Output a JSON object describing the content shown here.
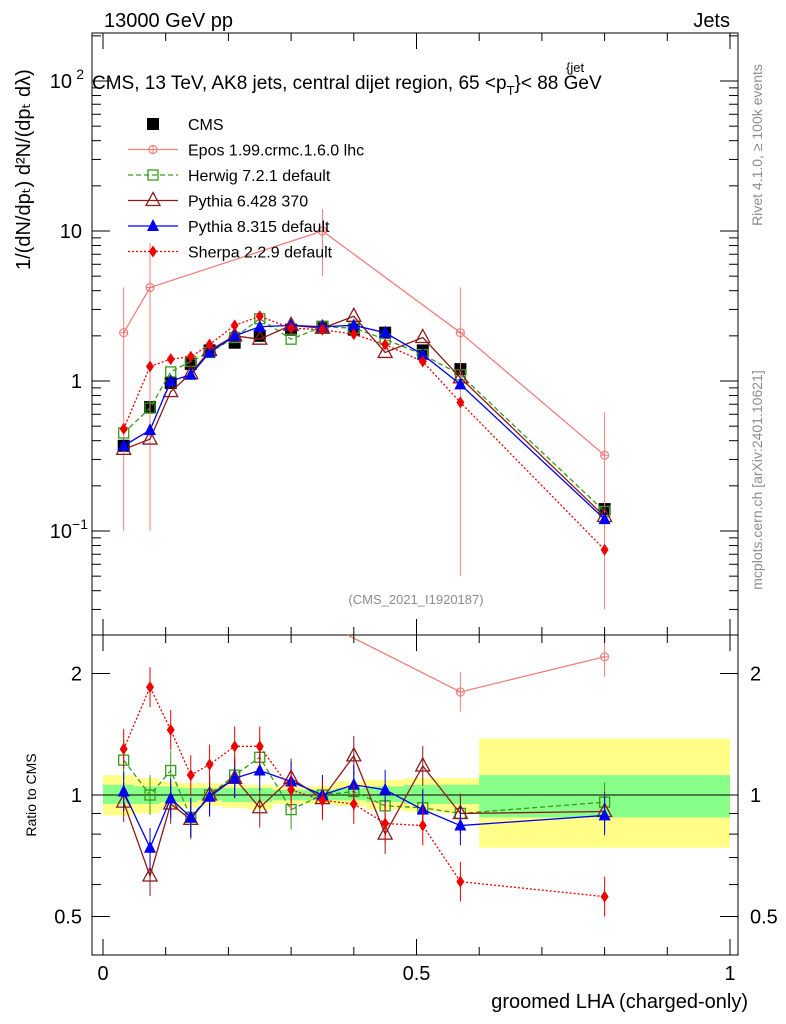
{
  "header": {
    "left": "13000 GeV pp",
    "right": "Jets"
  },
  "side_labels": {
    "rivet": "Rivet 4.1.0, ≥ 100k events",
    "mcplots": "mcplots.cern.ch [arXiv:2401.10621]"
  },
  "chart_data": [
    {
      "type": "line",
      "panel": "main",
      "title": "CMS, 13 TeV, AK8 jets, central dijet region, 65 < p_T^{jet} < 88 GeV",
      "watermark": "(CMS_2021_I1920187)",
      "ylabel": "1/(dN/dp_T) d²N/(dp_T dλ)",
      "xlabel": "groomed LHA (charged-only)",
      "yscale": "log",
      "ylim": [
        0.025,
        250
      ],
      "xlim": [
        -0.02,
        1.0
      ],
      "yticks": [
        "10^-1",
        "1",
        "10",
        "10^2"
      ],
      "legend_position": "top-left",
      "x": [
        0.033,
        0.075,
        0.108,
        0.14,
        0.17,
        0.21,
        0.25,
        0.3,
        0.35,
        0.4,
        0.45,
        0.51,
        0.57,
        0.8
      ],
      "series": [
        {
          "name": "CMS",
          "color": "#000000",
          "marker": "square",
          "line": "none",
          "values": [
            0.37,
            0.67,
            0.97,
            1.3,
            1.6,
            1.8,
            2.0,
            2.2,
            2.3,
            2.2,
            2.1,
            1.6,
            1.2,
            0.14
          ]
        },
        {
          "name": "Epos 1.99.crmc.1.6.0 lhc",
          "color": "#f08080",
          "marker": "cross-circle",
          "line": "solid",
          "values": [
            2.1,
            4.2,
            null,
            null,
            null,
            null,
            null,
            null,
            10.0,
            null,
            null,
            null,
            2.1,
            0.32
          ],
          "err_lo": [
            2.0,
            4.1,
            null,
            null,
            null,
            null,
            null,
            null,
            5.0,
            null,
            null,
            null,
            2.05,
            0.29
          ],
          "err_hi": [
            4.2,
            8.3,
            null,
            null,
            null,
            null,
            null,
            null,
            14.0,
            null,
            null,
            null,
            4.2,
            0.62
          ]
        },
        {
          "name": "Herwig 7.2.1 default",
          "color": "#3a9a1a",
          "marker": "open-square",
          "line": "dashed",
          "values": [
            0.45,
            0.66,
            1.15,
            1.35,
            1.55,
            1.95,
            2.6,
            1.9,
            2.3,
            2.25,
            1.9,
            1.5,
            1.1,
            0.135
          ]
        },
        {
          "name": "Pythia 6.428 370",
          "color": "#8b1a1a",
          "marker": "open-triangle",
          "line": "solid",
          "values": [
            0.35,
            0.41,
            0.85,
            1.12,
            1.6,
            2.0,
            1.9,
            2.35,
            2.25,
            2.7,
            1.55,
            1.95,
            1.05,
            0.125
          ]
        },
        {
          "name": "Pythia 8.315 default",
          "color": "#0000ee",
          "marker": "triangle",
          "line": "solid",
          "values": [
            0.37,
            0.47,
            1.0,
            1.1,
            1.55,
            2.0,
            2.3,
            2.35,
            2.3,
            2.35,
            2.1,
            1.5,
            0.95,
            0.12
          ]
        },
        {
          "name": "Sherpa 2.2.9 default",
          "color": "#ee0000",
          "marker": "diamond",
          "line": "dotted",
          "values": [
            0.48,
            1.25,
            1.4,
            1.45,
            1.75,
            2.35,
            2.7,
            2.25,
            2.2,
            2.05,
            1.75,
            1.35,
            0.72,
            0.075
          ]
        }
      ]
    },
    {
      "type": "line",
      "panel": "ratio",
      "ylabel": "Ratio to CMS",
      "xlabel": "groomed LHA (charged-only)",
      "yscale": "log",
      "ylim": [
        0.43,
        2.35
      ],
      "yticks": [
        "0.5",
        "1",
        "2"
      ],
      "xticks": [
        "0",
        "0.5",
        "1"
      ],
      "x": [
        0.033,
        0.075,
        0.108,
        0.14,
        0.17,
        0.21,
        0.25,
        0.3,
        0.35,
        0.4,
        0.45,
        0.51,
        0.57,
        0.8
      ],
      "bin_edges": [
        0.0,
        0.05,
        0.09,
        0.12,
        0.15,
        0.19,
        0.23,
        0.27,
        0.32,
        0.37,
        0.42,
        0.48,
        0.54,
        0.6,
        1.0
      ],
      "cms_band_inner": [
        [
          0.95,
          1.06
        ],
        [
          0.95,
          1.05
        ],
        [
          0.96,
          1.05
        ],
        [
          0.96,
          1.04
        ],
        [
          0.97,
          1.04
        ],
        [
          0.96,
          1.04
        ],
        [
          0.96,
          1.04
        ],
        [
          0.97,
          1.03
        ],
        [
          0.97,
          1.03
        ],
        [
          0.97,
          1.04
        ],
        [
          0.96,
          1.05
        ],
        [
          0.95,
          1.06
        ],
        [
          0.95,
          1.06
        ],
        [
          0.88,
          1.12
        ]
      ],
      "cms_band_outer": [
        [
          0.89,
          1.12
        ],
        [
          0.9,
          1.1
        ],
        [
          0.92,
          1.08
        ],
        [
          0.93,
          1.07
        ],
        [
          0.94,
          1.07
        ],
        [
          0.93,
          1.06
        ],
        [
          0.92,
          1.06
        ],
        [
          0.95,
          1.05
        ],
        [
          0.95,
          1.05
        ],
        [
          0.94,
          1.08
        ],
        [
          0.92,
          1.09
        ],
        [
          0.91,
          1.1
        ],
        [
          0.9,
          1.1
        ],
        [
          0.74,
          1.38
        ]
      ],
      "series": [
        {
          "name": "Epos 1.99.crmc.1.6.0 lhc",
          "color": "#f08080",
          "values": [
            null,
            null,
            null,
            null,
            null,
            null,
            null,
            null,
            null,
            null,
            null,
            null,
            1.8,
            2.2
          ]
        },
        {
          "name": "Herwig 7.2.1 default",
          "color": "#3a9a1a",
          "values": [
            1.22,
            1.0,
            1.15,
            0.88,
            1.0,
            1.12,
            1.24,
            0.92,
            1.0,
            1.02,
            0.94,
            0.93,
            0.9,
            0.96
          ]
        },
        {
          "name": "Pythia 6.428 370",
          "color": "#8b1a1a",
          "values": [
            0.96,
            0.63,
            0.95,
            0.87,
            1.0,
            1.1,
            0.93,
            1.1,
            0.98,
            1.25,
            0.8,
            1.18,
            0.9,
            0.91
          ]
        },
        {
          "name": "Pythia 8.315 default",
          "color": "#0000ee",
          "values": [
            1.02,
            0.74,
            0.98,
            0.88,
            0.99,
            1.1,
            1.15,
            1.08,
            1.0,
            1.06,
            1.03,
            0.92,
            0.84,
            0.89
          ]
        },
        {
          "name": "Sherpa 2.2.9 default",
          "color": "#ee0000",
          "values": [
            1.3,
            1.85,
            1.45,
            1.12,
            1.19,
            1.32,
            1.32,
            1.03,
            0.97,
            0.95,
            0.85,
            0.84,
            0.61,
            0.56
          ]
        }
      ]
    }
  ]
}
